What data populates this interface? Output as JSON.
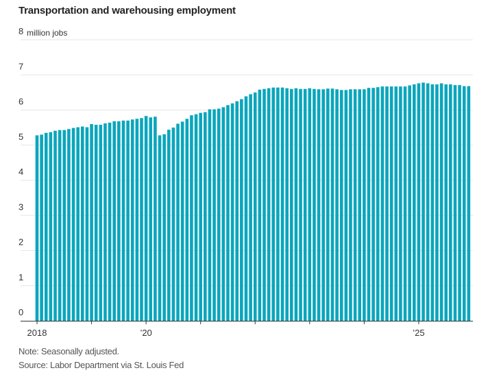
{
  "chart_data": {
    "type": "bar",
    "title": "Transportation and warehousing employment",
    "ylabel": "",
    "y_unit_label": "million jobs",
    "ylim": [
      0,
      8
    ],
    "yticks": [
      0,
      1,
      2,
      3,
      4,
      5,
      6,
      7,
      8
    ],
    "xtick_labels": [
      {
        "month": "2018-01",
        "label": "2018"
      },
      {
        "month": "2019-01",
        "label": ""
      },
      {
        "month": "2020-01",
        "label": "’20"
      },
      {
        "month": "2021-01",
        "label": ""
      },
      {
        "month": "2022-01",
        "label": ""
      },
      {
        "month": "2023-01",
        "label": ""
      },
      {
        "month": "2024-01",
        "label": ""
      },
      {
        "month": "2025-01",
        "label": "’25"
      }
    ],
    "grid": true,
    "bar_color": "#0aa6bd",
    "categories": [
      "2018-01",
      "2018-02",
      "2018-03",
      "2018-04",
      "2018-05",
      "2018-06",
      "2018-07",
      "2018-08",
      "2018-09",
      "2018-10",
      "2018-11",
      "2018-12",
      "2019-01",
      "2019-02",
      "2019-03",
      "2019-04",
      "2019-05",
      "2019-06",
      "2019-07",
      "2019-08",
      "2019-09",
      "2019-10",
      "2019-11",
      "2019-12",
      "2020-01",
      "2020-02",
      "2020-03",
      "2020-04",
      "2020-05",
      "2020-06",
      "2020-07",
      "2020-08",
      "2020-09",
      "2020-10",
      "2020-11",
      "2020-12",
      "2021-01",
      "2021-02",
      "2021-03",
      "2021-04",
      "2021-05",
      "2021-06",
      "2021-07",
      "2021-08",
      "2021-09",
      "2021-10",
      "2021-11",
      "2021-12",
      "2022-01",
      "2022-02",
      "2022-03",
      "2022-04",
      "2022-05",
      "2022-06",
      "2022-07",
      "2022-08",
      "2022-09",
      "2022-10",
      "2022-11",
      "2022-12",
      "2023-01",
      "2023-02",
      "2023-03",
      "2023-04",
      "2023-05",
      "2023-06",
      "2023-07",
      "2023-08",
      "2023-09",
      "2023-10",
      "2023-11",
      "2023-12",
      "2024-01",
      "2024-02",
      "2024-03",
      "2024-04",
      "2024-05",
      "2024-06",
      "2024-07",
      "2024-08",
      "2024-09",
      "2024-10",
      "2024-11",
      "2024-12",
      "2025-01",
      "2025-02",
      "2025-03",
      "2025-04",
      "2025-05",
      "2025-06",
      "2025-07",
      "2025-08",
      "2025-09",
      "2025-10",
      "2025-11",
      "2025-12"
    ],
    "values": [
      5.28,
      5.3,
      5.35,
      5.37,
      5.41,
      5.43,
      5.43,
      5.46,
      5.49,
      5.51,
      5.53,
      5.51,
      5.6,
      5.58,
      5.58,
      5.62,
      5.64,
      5.68,
      5.68,
      5.7,
      5.7,
      5.73,
      5.75,
      5.77,
      5.83,
      5.79,
      5.81,
      5.28,
      5.31,
      5.44,
      5.5,
      5.61,
      5.67,
      5.75,
      5.85,
      5.88,
      5.92,
      5.94,
      6.02,
      6.02,
      6.04,
      6.08,
      6.14,
      6.19,
      6.25,
      6.31,
      6.39,
      6.45,
      6.5,
      6.58,
      6.6,
      6.62,
      6.64,
      6.64,
      6.64,
      6.62,
      6.6,
      6.62,
      6.6,
      6.6,
      6.62,
      6.6,
      6.59,
      6.59,
      6.61,
      6.61,
      6.59,
      6.57,
      6.57,
      6.59,
      6.59,
      6.59,
      6.59,
      6.63,
      6.63,
      6.65,
      6.67,
      6.67,
      6.67,
      6.67,
      6.67,
      6.67,
      6.7,
      6.73,
      6.76,
      6.78,
      6.76,
      6.73,
      6.73,
      6.76,
      6.73,
      6.73,
      6.71,
      6.71,
      6.68,
      6.68
    ]
  },
  "notes": {
    "note": "Note: Seasonally adjusted.",
    "source": "Source: Labor Department via St. Louis Fed"
  }
}
